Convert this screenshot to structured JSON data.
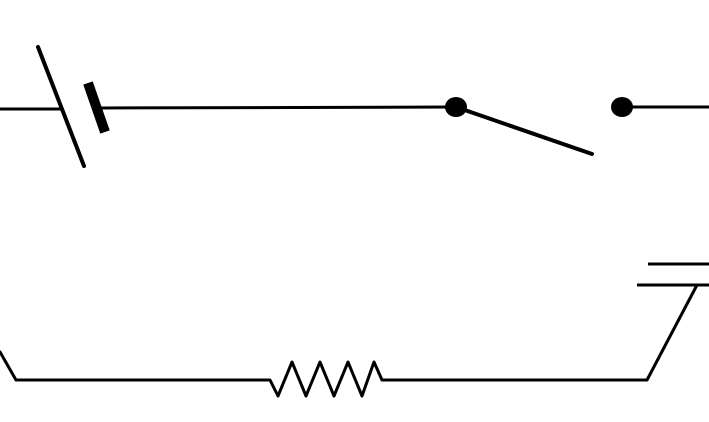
{
  "diagram": {
    "type": "circuit-schematic",
    "components": [
      {
        "kind": "battery-cell-icon"
      },
      {
        "kind": "switch-open-icon"
      },
      {
        "kind": "resistor-icon"
      },
      {
        "kind": "capacitor-icon"
      }
    ],
    "colors": {
      "line": "#000000",
      "background": "#ffffff"
    }
  }
}
